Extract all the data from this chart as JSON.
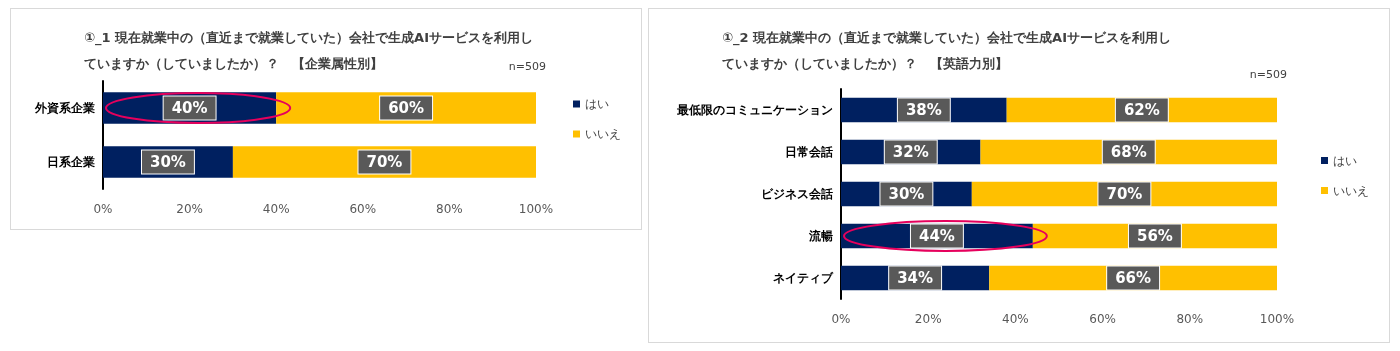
{
  "chart_data": [
    {
      "type": "bar",
      "orientation": "horizontal",
      "stacked": true,
      "title": "①_1 現在就業中の（直近まで就業していた）会社で生成AIサービスを利用していますか（していましたか）？　【企業属性別】",
      "annotations": [
        "n=509"
      ],
      "categories": [
        "外資系企業",
        "日系企業"
      ],
      "series": [
        {
          "name": "はい",
          "color": "#002060",
          "values": [
            40,
            30
          ],
          "value_labels": [
            "40%",
            "30%"
          ]
        },
        {
          "name": "いいえ",
          "color": "#ffc000",
          "values": [
            60,
            70
          ],
          "value_labels": [
            "60%",
            "70%"
          ]
        }
      ],
      "xlim": [
        0,
        100
      ],
      "xticks": [
        {
          "value": 0,
          "label": "0%"
        },
        {
          "value": 20,
          "label": "20%"
        },
        {
          "value": 40,
          "label": "40%"
        },
        {
          "value": 60,
          "label": "60%"
        },
        {
          "value": 80,
          "label": "80%"
        },
        {
          "value": 100,
          "label": "100%"
        }
      ],
      "grid": false,
      "legend": "right"
    },
    {
      "type": "bar",
      "orientation": "horizontal",
      "stacked": true,
      "title": "①_2 現在就業中の（直近まで就業していた）会社で生成AIサービスを利用していますか（していましたか）？　【英語力別】",
      "annotations": [
        "n=509"
      ],
      "categories": [
        "最低限のコミュニケーション",
        "日常会話",
        "ビジネス会話",
        "流暢",
        "ネイティブ"
      ],
      "series": [
        {
          "name": "はい",
          "color": "#002060",
          "values": [
            38,
            32,
            30,
            44,
            34
          ],
          "value_labels": [
            "38%",
            "32%",
            "30%",
            "44%",
            "34%"
          ]
        },
        {
          "name": "いいえ",
          "color": "#ffc000",
          "values": [
            62,
            68,
            70,
            56,
            66
          ],
          "value_labels": [
            "62%",
            "68%",
            "70%",
            "56%",
            "66%"
          ]
        }
      ],
      "xlim": [
        0,
        100
      ],
      "xticks": [
        {
          "value": 0,
          "label": "0%"
        },
        {
          "value": 20,
          "label": "20%"
        },
        {
          "value": 40,
          "label": "40%"
        },
        {
          "value": 60,
          "label": "60%"
        },
        {
          "value": 80,
          "label": "80%"
        },
        {
          "value": 100,
          "label": "100%"
        }
      ],
      "grid": false,
      "legend": "right"
    }
  ]
}
